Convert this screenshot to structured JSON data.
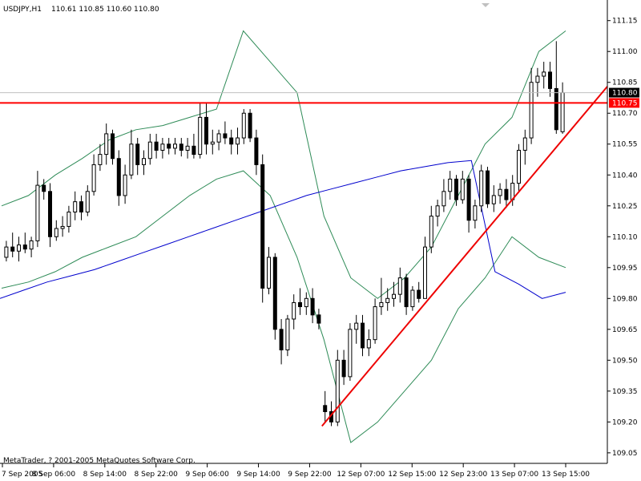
{
  "header": {
    "symbol_tf": "USDJPY,H1",
    "ohlc": "110.61 110.85 110.60 110.80"
  },
  "copyright": "MetaTrader, ? 2001-2005 MetaQuotes Software Corp.",
  "colors": {
    "background": "#ffffff",
    "axis": "#000000",
    "candle_body_bear": "#000000",
    "candle_body_bull": "#ffffff",
    "bollinger": "#2e8b57",
    "moving_average": "#0000cd",
    "red_level": "#ff0000",
    "trendline": "#ee0000",
    "bid_line": "#c0c0c0",
    "current_tag_bg": "#000000",
    "level_tag_bg": "#ff0000"
  },
  "chart_data": {
    "type": "candlestick",
    "symbol": "USDJPY",
    "timeframe": "H1",
    "ylim": [
      109.03,
      111.18
    ],
    "y_ticks": [
      "111.15",
      "111.00",
      "110.85",
      "110.70",
      "110.55",
      "110.40",
      "110.25",
      "110.10",
      "109.95",
      "109.80",
      "109.65",
      "109.50",
      "109.35",
      "109.20",
      "109.05"
    ],
    "x_ticks": [
      "7 Sep 2005",
      "8 Sep 06:00",
      "8 Sep 14:00",
      "8 Sep 22:00",
      "9 Sep 06:00",
      "9 Sep 14:00",
      "9 Sep 22:00",
      "12 Sep 07:00",
      "12 Sep 15:00",
      "12 Sep 23:00",
      "13 Sep 07:00",
      "13 Sep 15:00"
    ],
    "current_price": "110.80",
    "horizontal_level": "110.75",
    "candles": [
      {
        "o": 110.0,
        "h": 110.08,
        "l": 109.98,
        "c": 110.05
      },
      {
        "o": 110.05,
        "h": 110.12,
        "l": 110.0,
        "c": 110.03
      },
      {
        "o": 110.03,
        "h": 110.1,
        "l": 109.98,
        "c": 110.06
      },
      {
        "o": 110.06,
        "h": 110.12,
        "l": 110.02,
        "c": 110.04
      },
      {
        "o": 110.04,
        "h": 110.1,
        "l": 110.0,
        "c": 110.08
      },
      {
        "o": 110.08,
        "h": 110.42,
        "l": 110.05,
        "c": 110.35
      },
      {
        "o": 110.35,
        "h": 110.38,
        "l": 110.28,
        "c": 110.32
      },
      {
        "o": 110.32,
        "h": 110.36,
        "l": 110.05,
        "c": 110.1
      },
      {
        "o": 110.1,
        "h": 110.18,
        "l": 110.08,
        "c": 110.14
      },
      {
        "o": 110.14,
        "h": 110.2,
        "l": 110.1,
        "c": 110.15
      },
      {
        "o": 110.15,
        "h": 110.25,
        "l": 110.12,
        "c": 110.22
      },
      {
        "o": 110.22,
        "h": 110.32,
        "l": 110.18,
        "c": 110.27
      },
      {
        "o": 110.27,
        "h": 110.3,
        "l": 110.18,
        "c": 110.22
      },
      {
        "o": 110.22,
        "h": 110.35,
        "l": 110.2,
        "c": 110.32
      },
      {
        "o": 110.32,
        "h": 110.5,
        "l": 110.3,
        "c": 110.45
      },
      {
        "o": 110.45,
        "h": 110.55,
        "l": 110.42,
        "c": 110.5
      },
      {
        "o": 110.5,
        "h": 110.65,
        "l": 110.45,
        "c": 110.6
      },
      {
        "o": 110.6,
        "h": 110.62,
        "l": 110.45,
        "c": 110.48
      },
      {
        "o": 110.48,
        "h": 110.52,
        "l": 110.25,
        "c": 110.3
      },
      {
        "o": 110.3,
        "h": 110.45,
        "l": 110.26,
        "c": 110.4
      },
      {
        "o": 110.4,
        "h": 110.62,
        "l": 110.38,
        "c": 110.55
      },
      {
        "o": 110.55,
        "h": 110.58,
        "l": 110.4,
        "c": 110.45
      },
      {
        "o": 110.45,
        "h": 110.52,
        "l": 110.4,
        "c": 110.48
      },
      {
        "o": 110.48,
        "h": 110.6,
        "l": 110.45,
        "c": 110.56
      },
      {
        "o": 110.56,
        "h": 110.6,
        "l": 110.48,
        "c": 110.52
      },
      {
        "o": 110.52,
        "h": 110.58,
        "l": 110.48,
        "c": 110.55
      },
      {
        "o": 110.55,
        "h": 110.58,
        "l": 110.5,
        "c": 110.53
      },
      {
        "o": 110.53,
        "h": 110.58,
        "l": 110.5,
        "c": 110.55
      },
      {
        "o": 110.55,
        "h": 110.58,
        "l": 110.49,
        "c": 110.52
      },
      {
        "o": 110.52,
        "h": 110.58,
        "l": 110.48,
        "c": 110.54
      },
      {
        "o": 110.54,
        "h": 110.6,
        "l": 110.48,
        "c": 110.5
      },
      {
        "o": 110.5,
        "h": 110.75,
        "l": 110.48,
        "c": 110.68
      },
      {
        "o": 110.68,
        "h": 110.75,
        "l": 110.5,
        "c": 110.55
      },
      {
        "o": 110.55,
        "h": 110.62,
        "l": 110.5,
        "c": 110.56
      },
      {
        "o": 110.56,
        "h": 110.62,
        "l": 110.52,
        "c": 110.6
      },
      {
        "o": 110.6,
        "h": 110.66,
        "l": 110.55,
        "c": 110.58
      },
      {
        "o": 110.58,
        "h": 110.62,
        "l": 110.5,
        "c": 110.55
      },
      {
        "o": 110.55,
        "h": 110.63,
        "l": 110.5,
        "c": 110.58
      },
      {
        "o": 110.58,
        "h": 110.72,
        "l": 110.55,
        "c": 110.7
      },
      {
        "o": 110.7,
        "h": 110.72,
        "l": 110.56,
        "c": 110.58
      },
      {
        "o": 110.58,
        "h": 110.62,
        "l": 110.4,
        "c": 110.45
      },
      {
        "o": 110.45,
        "h": 110.5,
        "l": 109.78,
        "c": 109.85
      },
      {
        "o": 109.85,
        "h": 110.05,
        "l": 109.82,
        "c": 110.0
      },
      {
        "o": 110.0,
        "h": 110.02,
        "l": 109.6,
        "c": 109.65
      },
      {
        "o": 109.65,
        "h": 109.7,
        "l": 109.48,
        "c": 109.55
      },
      {
        "o": 109.55,
        "h": 109.72,
        "l": 109.52,
        "c": 109.7
      },
      {
        "o": 109.7,
        "h": 109.82,
        "l": 109.65,
        "c": 109.78
      },
      {
        "o": 109.78,
        "h": 109.85,
        "l": 109.72,
        "c": 109.76
      },
      {
        "o": 109.76,
        "h": 109.83,
        "l": 109.72,
        "c": 109.8
      },
      {
        "o": 109.8,
        "h": 109.85,
        "l": 109.68,
        "c": 109.72
      },
      {
        "o": 109.72,
        "h": 109.75,
        "l": 109.65,
        "c": 109.68
      },
      {
        "o": 109.28,
        "h": 109.35,
        "l": 109.2,
        "c": 109.25
      },
      {
        "o": 109.25,
        "h": 109.3,
        "l": 109.18,
        "c": 109.2
      },
      {
        "o": 109.2,
        "h": 109.55,
        "l": 109.18,
        "c": 109.5
      },
      {
        "o": 109.5,
        "h": 109.55,
        "l": 109.38,
        "c": 109.42
      },
      {
        "o": 109.42,
        "h": 109.68,
        "l": 109.4,
        "c": 109.65
      },
      {
        "o": 109.65,
        "h": 109.72,
        "l": 109.58,
        "c": 109.68
      },
      {
        "o": 109.68,
        "h": 109.72,
        "l": 109.52,
        "c": 109.56
      },
      {
        "o": 109.56,
        "h": 109.65,
        "l": 109.52,
        "c": 109.6
      },
      {
        "o": 109.6,
        "h": 109.8,
        "l": 109.58,
        "c": 109.76
      },
      {
        "o": 109.76,
        "h": 109.9,
        "l": 109.72,
        "c": 109.78
      },
      {
        "o": 109.78,
        "h": 109.85,
        "l": 109.74,
        "c": 109.8
      },
      {
        "o": 109.8,
        "h": 109.88,
        "l": 109.76,
        "c": 109.82
      },
      {
        "o": 109.82,
        "h": 109.95,
        "l": 109.78,
        "c": 109.9
      },
      {
        "o": 109.9,
        "h": 109.92,
        "l": 109.72,
        "c": 109.76
      },
      {
        "o": 109.76,
        "h": 109.86,
        "l": 109.74,
        "c": 109.84
      },
      {
        "o": 109.84,
        "h": 109.88,
        "l": 109.78,
        "c": 109.8
      },
      {
        "o": 109.8,
        "h": 110.1,
        "l": 109.8,
        "c": 110.05
      },
      {
        "o": 110.05,
        "h": 110.25,
        "l": 110.02,
        "c": 110.2
      },
      {
        "o": 110.2,
        "h": 110.28,
        "l": 110.15,
        "c": 110.25
      },
      {
        "o": 110.25,
        "h": 110.38,
        "l": 110.22,
        "c": 110.32
      },
      {
        "o": 110.32,
        "h": 110.42,
        "l": 110.28,
        "c": 110.38
      },
      {
        "o": 110.38,
        "h": 110.4,
        "l": 110.25,
        "c": 110.28
      },
      {
        "o": 110.28,
        "h": 110.42,
        "l": 110.26,
        "c": 110.38
      },
      {
        "o": 110.38,
        "h": 110.4,
        "l": 110.12,
        "c": 110.18
      },
      {
        "o": 110.18,
        "h": 110.28,
        "l": 110.14,
        "c": 110.25
      },
      {
        "o": 110.25,
        "h": 110.45,
        "l": 110.22,
        "c": 110.42
      },
      {
        "o": 110.42,
        "h": 110.44,
        "l": 110.24,
        "c": 110.26
      },
      {
        "o": 110.26,
        "h": 110.35,
        "l": 110.22,
        "c": 110.3
      },
      {
        "o": 110.3,
        "h": 110.36,
        "l": 110.26,
        "c": 110.33
      },
      {
        "o": 110.33,
        "h": 110.38,
        "l": 110.24,
        "c": 110.28
      },
      {
        "o": 110.28,
        "h": 110.4,
        "l": 110.25,
        "c": 110.36
      },
      {
        "o": 110.36,
        "h": 110.55,
        "l": 110.32,
        "c": 110.52
      },
      {
        "o": 110.52,
        "h": 110.62,
        "l": 110.45,
        "c": 110.58
      },
      {
        "o": 110.58,
        "h": 110.92,
        "l": 110.55,
        "c": 110.85
      },
      {
        "o": 110.85,
        "h": 110.92,
        "l": 110.78,
        "c": 110.88
      },
      {
        "o": 110.88,
        "h": 110.95,
        "l": 110.82,
        "c": 110.9
      },
      {
        "o": 110.9,
        "h": 110.95,
        "l": 110.78,
        "c": 110.82
      },
      {
        "o": 110.82,
        "h": 111.05,
        "l": 110.6,
        "c": 110.62
      },
      {
        "o": 110.61,
        "h": 110.85,
        "l": 110.6,
        "c": 110.8
      }
    ],
    "moving_average": [
      109.8,
      109.84,
      109.88,
      109.91,
      109.94,
      109.98,
      110.02,
      110.06,
      110.1,
      110.14,
      110.18,
      110.22,
      110.26,
      110.3,
      110.33,
      110.36,
      110.39,
      110.42,
      110.44,
      110.46,
      110.47,
      109.93,
      109.87,
      109.8,
      109.83
    ],
    "bollinger_upper": [
      110.25,
      110.3,
      110.4,
      110.48,
      110.57,
      110.62,
      110.64,
      110.68,
      110.72,
      111.1,
      110.95,
      110.8,
      110.2,
      109.9,
      109.8,
      109.9,
      110.05,
      110.3,
      110.55,
      110.68,
      111.0,
      111.1
    ],
    "bollinger_lower": [
      109.85,
      109.88,
      109.93,
      110.0,
      110.05,
      110.1,
      110.2,
      110.3,
      110.38,
      110.42,
      110.3,
      110.0,
      109.6,
      109.1,
      109.2,
      109.35,
      109.5,
      109.75,
      109.9,
      110.1,
      110.0,
      109.95
    ]
  }
}
